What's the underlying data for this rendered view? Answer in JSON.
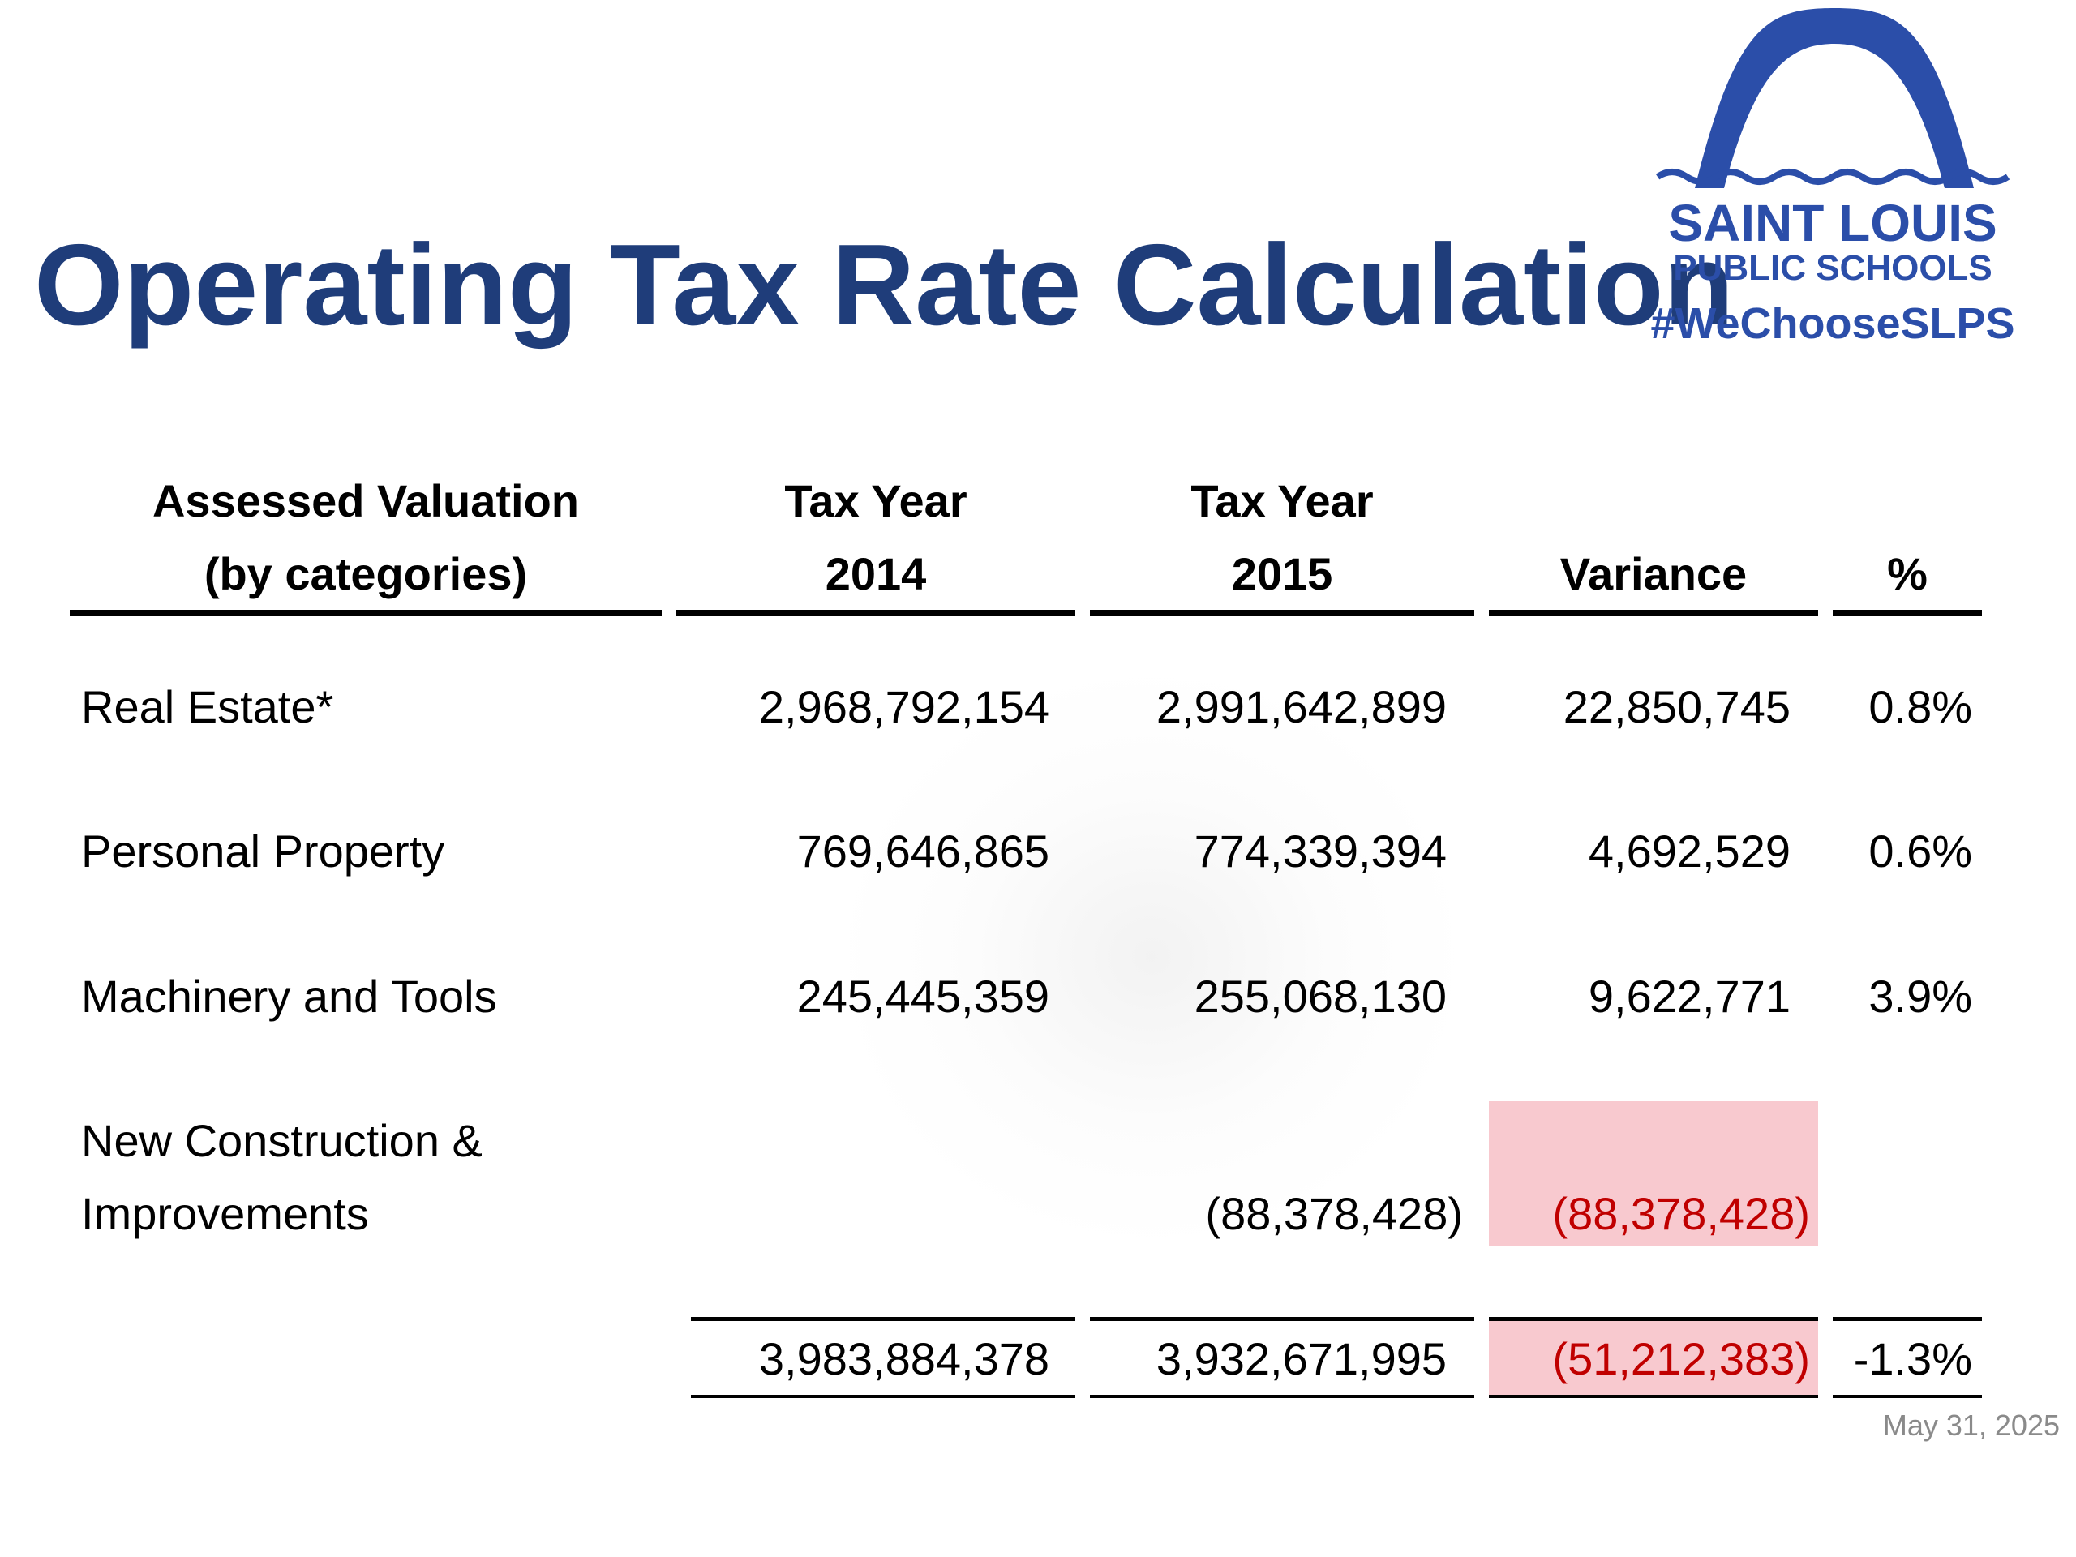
{
  "slide": {
    "title": "Operating Tax Rate Calculation",
    "date": "May 31, 2025"
  },
  "logo": {
    "line1": "SAINT LOUIS",
    "line2": "PUBLIC SCHOOLS",
    "hashtag": "#WeChooseSLPS",
    "icon": "arch-icon",
    "color": "#2b4ea9"
  },
  "colors": {
    "title": "#1f3d7a",
    "negative": "#c00000",
    "highlight": "#f8c9cf"
  },
  "table": {
    "headers": {
      "category_line1": "Assessed Valuation",
      "category_line2": "(by categories)",
      "y2014_line1": "Tax Year",
      "y2014_line2": "2014",
      "y2015_line1": "Tax Year",
      "y2015_line2": "2015",
      "variance": "Variance",
      "percent": "%"
    },
    "rows": [
      {
        "label": "Real Estate*",
        "y2014": "2,968,792,154",
        "y2015": "2,991,642,899",
        "variance": "22,850,745",
        "percent": "0.8%"
      },
      {
        "label": "Personal Property",
        "y2014": "769,646,865",
        "y2015": "774,339,394",
        "variance": "4,692,529",
        "percent": "0.6%"
      },
      {
        "label": "Machinery and Tools",
        "y2014": "245,445,359",
        "y2015": "255,068,130",
        "variance": "9,622,771",
        "percent": "3.9%"
      },
      {
        "label_line1": "New Construction &",
        "label_line2": "Improvements",
        "y2014": "",
        "y2015": "(88,378,428)",
        "variance": "(88,378,428)",
        "percent": ""
      }
    ],
    "totals": {
      "y2014": "3,983,884,378",
      "y2015": "3,932,671,995",
      "variance": "(51,212,383)",
      "percent": "-1.3%"
    }
  }
}
